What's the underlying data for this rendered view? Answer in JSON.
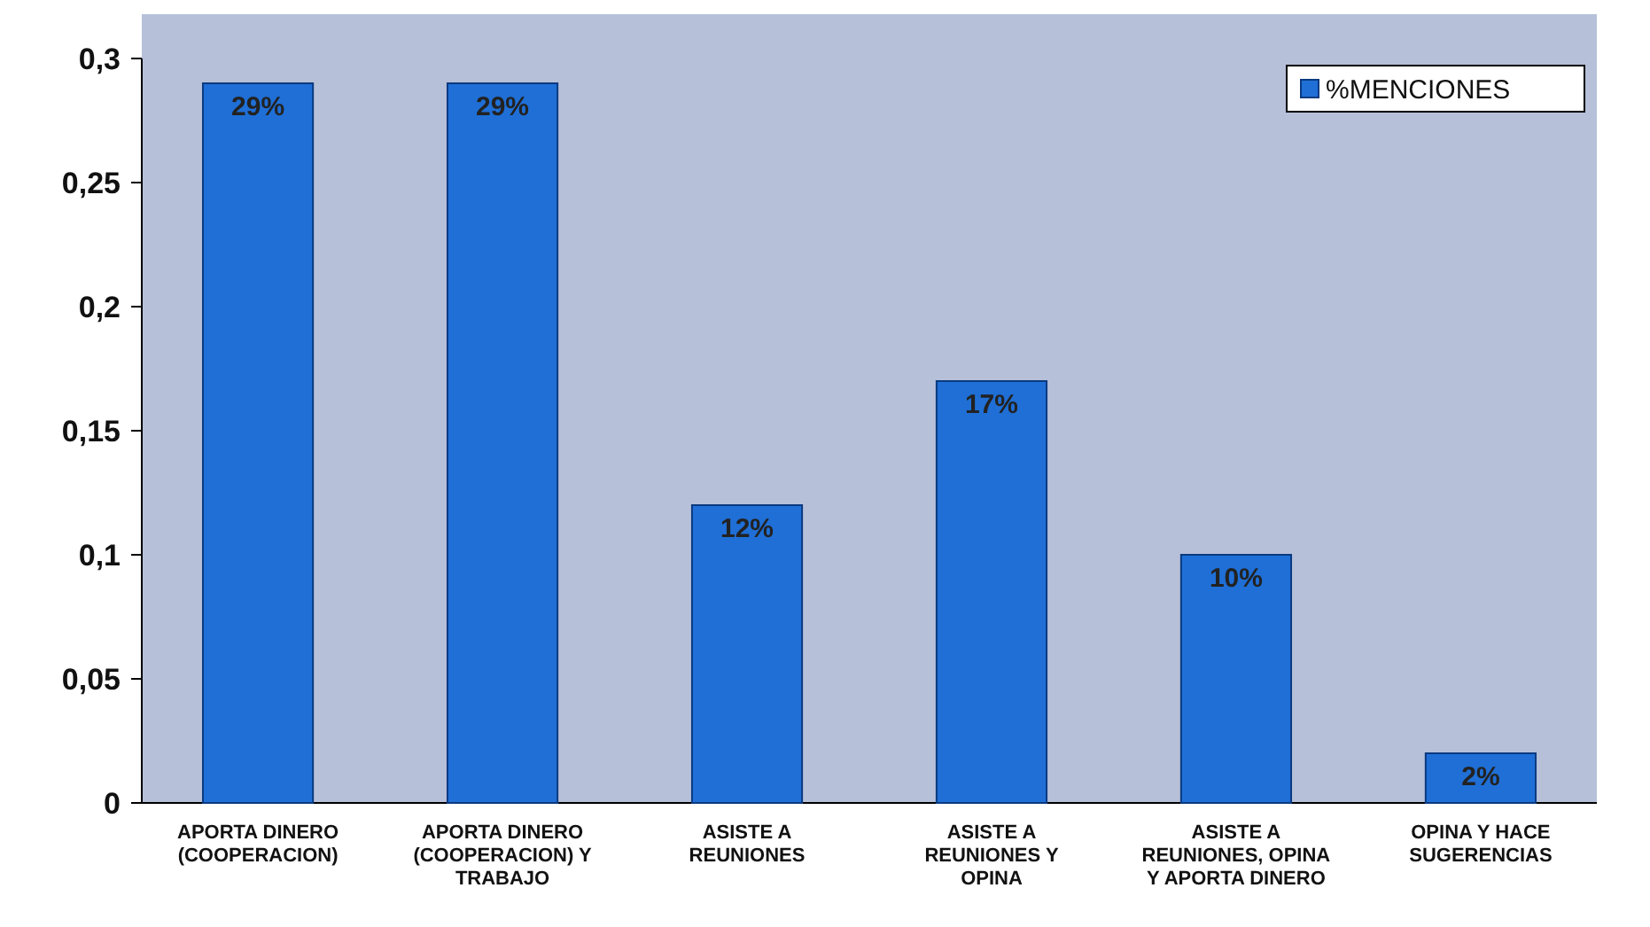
{
  "chart_data": {
    "type": "bar",
    "categories": [
      "APORTA DINERO (COOPERACION)",
      "APORTA DINERO (COOPERACION) Y TRABAJO",
      "ASISTE A REUNIONES",
      "ASISTE A REUNIONES Y OPINA",
      "ASISTE A REUNIONES, OPINA Y APORTA DINERO",
      "OPINA Y HACE SUGERENCIAS"
    ],
    "series": [
      {
        "name": "%MENCIONES",
        "color": "#1f6fd6",
        "values": [
          0.29,
          0.29,
          0.12,
          0.17,
          0.1,
          0.02
        ],
        "value_labels": [
          "29%",
          "29%",
          "12%",
          "17%",
          "10%",
          "2%"
        ]
      }
    ],
    "ylim": [
      0,
      0.3
    ],
    "yticks": [
      0,
      {
        "value": 0.05,
        "label": "0,05"
      },
      {
        "value": 0.1,
        "label": "0,1"
      },
      {
        "value": 0.15,
        "label": "0,15"
      },
      {
        "value": 0.2,
        "label": "0,2"
      },
      {
        "value": 0.25,
        "label": "0,25"
      },
      {
        "value": 0.3,
        "label": "0,3"
      }
    ],
    "legend": "top right"
  }
}
